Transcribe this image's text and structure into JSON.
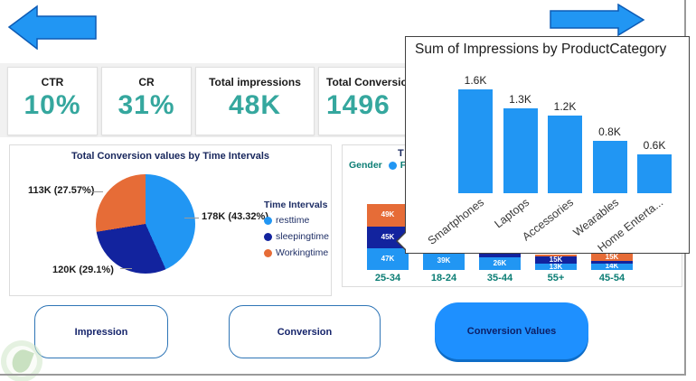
{
  "nav": {
    "back_arrow": "left-block-arrow",
    "forward_arrow": "right-block-arrow",
    "arrow_color": "#2196F3"
  },
  "kpis": [
    {
      "label": "CTR",
      "value": "10%"
    },
    {
      "label": "CR",
      "value": "31%"
    },
    {
      "label": "Total impressions",
      "value": "48K"
    },
    {
      "label": "Total Conversion",
      "value": "1496"
    }
  ],
  "colors": {
    "accent_blue": "#2196F3",
    "dark_navy": "#12239E",
    "orange": "#E66C37",
    "kpi_value_teal": "#35a79e",
    "axis_teal": "#0b7d74",
    "title_navy": "#17265c",
    "active_button_blue": "#1e90ff"
  },
  "chart_data": [
    {
      "type": "pie",
      "title": "Total Conversion values by Time Intervals",
      "legend_title": "Time Intervals",
      "legend_position": "right",
      "slices": [
        {
          "label": "resttime",
          "value": 178,
          "pct": 43.32,
          "value_text": "178K (43.32%)",
          "color": "#2196F3"
        },
        {
          "label": "sleepingtime",
          "value": 120,
          "pct": 29.1,
          "value_text": "120K (29.1%)",
          "color": "#12239E"
        },
        {
          "label": "Workingtime",
          "value": 113,
          "pct": 27.57,
          "value_text": "113K (27.57%)",
          "color": "#E66C37"
        }
      ]
    },
    {
      "type": "bar",
      "stacked": true,
      "title_visible": "T",
      "legend": {
        "title": "Gender",
        "items": [
          {
            "label": "Female",
            "color": "#2196F3"
          }
        ]
      },
      "categories": [
        "25-34",
        "18-24",
        "35-44",
        "55+",
        "45-54"
      ],
      "unit": "K impressions",
      "bars": [
        {
          "category": "25-34",
          "segments": [
            {
              "color": "#2196F3",
              "label": "47K",
              "k": 47
            },
            {
              "color": "#12239E",
              "label": "45K",
              "k": 45
            },
            {
              "color": "#E66C37",
              "label": "49K",
              "k": 49
            }
          ]
        },
        {
          "category": "18-24",
          "segments": [
            {
              "color": "#2196F3",
              "label": "39K",
              "k": 39
            }
          ]
        },
        {
          "category": "35-44",
          "segments": [
            {
              "color": "#2196F3",
              "label": "26K",
              "k": 26
            },
            {
              "color": "#12239E",
              "label": "",
              "k": 12
            }
          ]
        },
        {
          "category": "55+",
          "segments": [
            {
              "color": "#2196F3",
              "label": "13K",
              "k": 13
            },
            {
              "color": "#12239E",
              "label": "15K",
              "k": 15
            },
            {
              "color": "#E66C37",
              "label": "",
              "k": 5
            }
          ]
        },
        {
          "category": "45-54",
          "segments": [
            {
              "color": "#2196F3",
              "label": "14K",
              "k": 14
            },
            {
              "color": "#12239E",
              "label": "",
              "k": 5
            },
            {
              "color": "#E66C37",
              "label": "15K",
              "k": 15
            }
          ]
        }
      ]
    },
    {
      "type": "bar",
      "title": "Sum of Impressions by ProductCategory",
      "categories": [
        "Smartphones",
        "Laptops",
        "Accessories",
        "Wearables",
        "Home Enterta..."
      ],
      "values": [
        1.6,
        1.3,
        1.2,
        0.8,
        0.6
      ],
      "labels": [
        "1.6K",
        "1.3K",
        "1.2K",
        "0.8K",
        "0.6K"
      ],
      "bar_color": "#2196F3",
      "ylim": [
        0,
        1.8
      ]
    }
  ],
  "action_buttons": [
    {
      "label": "Impression",
      "active": false
    },
    {
      "label": "Conversion",
      "active": false
    },
    {
      "label": "Conversion Values",
      "active": true
    }
  ]
}
